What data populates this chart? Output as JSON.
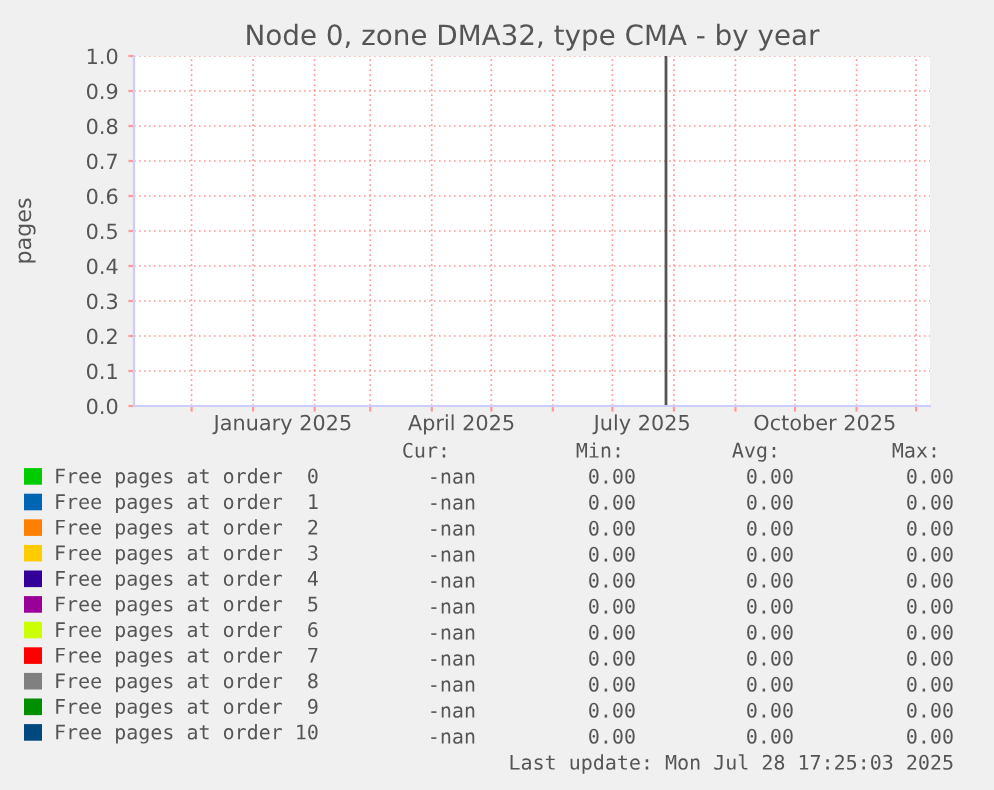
{
  "chart_data": {
    "type": "line",
    "title": "Node 0, zone DMA32, type CMA - by year",
    "ylabel": "pages",
    "xlim": [
      "2024-11-02",
      "2025-12-08"
    ],
    "xticks": [
      {
        "value": "2024-12-01",
        "label": null
      },
      {
        "value": "2025-01-01",
        "label": null
      },
      {
        "value": "2025-02-01",
        "label": null
      },
      {
        "value": "2025-03-01",
        "label": null
      },
      {
        "value": "2025-04-01",
        "label": null
      },
      {
        "value": "2025-05-01",
        "label": null
      },
      {
        "value": "2025-06-01",
        "label": null
      },
      {
        "value": "2025-07-01",
        "label": null
      },
      {
        "value": "2025-08-01",
        "label": null
      },
      {
        "value": "2025-09-01",
        "label": null
      },
      {
        "value": "2025-10-01",
        "label": null
      },
      {
        "value": "2025-11-01",
        "label": null
      },
      {
        "value": "2025-12-01",
        "label": null
      },
      {
        "value": "2025-01-16",
        "label": "January 2025"
      },
      {
        "value": "2025-04-16",
        "label": "April 2025"
      },
      {
        "value": "2025-07-16",
        "label": "July 2025"
      },
      {
        "value": "2025-10-16",
        "label": "October 2025"
      }
    ],
    "ylim": [
      0,
      1
    ],
    "yticks": [
      {
        "value": 0,
        "label": "0.0"
      },
      {
        "value": 0.1,
        "label": "0.1"
      },
      {
        "value": 0.2,
        "label": "0.2"
      },
      {
        "value": 0.3,
        "label": "0.3"
      },
      {
        "value": 0.4,
        "label": "0.4"
      },
      {
        "value": 0.5,
        "label": "0.5"
      },
      {
        "value": 0.6,
        "label": "0.6"
      },
      {
        "value": 0.7,
        "label": "0.7"
      },
      {
        "value": 0.8,
        "label": "0.8"
      },
      {
        "value": 0.9,
        "label": "0.9"
      },
      {
        "value": 1,
        "label": "1.0"
      }
    ],
    "grid": true,
    "legend": "bottom",
    "series": [
      {
        "color": "#555555",
        "x": [
          "2025-07-28",
          "2025-07-28"
        ],
        "values": [
          0,
          1
        ]
      },
      {
        "name": "Free pages at order  0",
        "color": "#00cc00"
      },
      {
        "name": "Free pages at order  1",
        "color": "#0066b3"
      },
      {
        "name": "Free pages at order  2",
        "color": "#ff8000"
      },
      {
        "name": "Free pages at order  3",
        "color": "#ffcc00"
      },
      {
        "name": "Free pages at order  4",
        "color": "#330099"
      },
      {
        "name": "Free pages at order  5",
        "color": "#990099"
      },
      {
        "name": "Free pages at order  6",
        "color": "#ccff00"
      },
      {
        "name": "Free pages at order  7",
        "color": "#ff0000"
      },
      {
        "name": "Free pages at order  8",
        "color": "#808080"
      },
      {
        "name": "Free pages at order  9",
        "color": "#008f00"
      },
      {
        "name": "Free pages at order 10",
        "color": "#00487d"
      }
    ],
    "annotations": [
      "Cur:",
      "Min:",
      "Avg:",
      "Max:",
      "-nan",
      "0.00",
      "0.00",
      "0.00",
      "-nan",
      "0.00",
      "0.00",
      "0.00",
      "-nan",
      "0.00",
      "0.00",
      "0.00",
      "-nan",
      "0.00",
      "0.00",
      "0.00",
      "-nan",
      "0.00",
      "0.00",
      "0.00",
      "-nan",
      "0.00",
      "0.00",
      "0.00",
      "-nan",
      "0.00",
      "0.00",
      "0.00",
      "-nan",
      "0.00",
      "0.00",
      "0.00",
      "-nan",
      "0.00",
      "0.00",
      "0.00",
      "-nan",
      "0.00",
      "0.00",
      "0.00",
      "-nan",
      "0.00",
      "0.00",
      "0.00",
      "Last update: Mon Jul 28 17:25:03 2025"
    ]
  }
}
